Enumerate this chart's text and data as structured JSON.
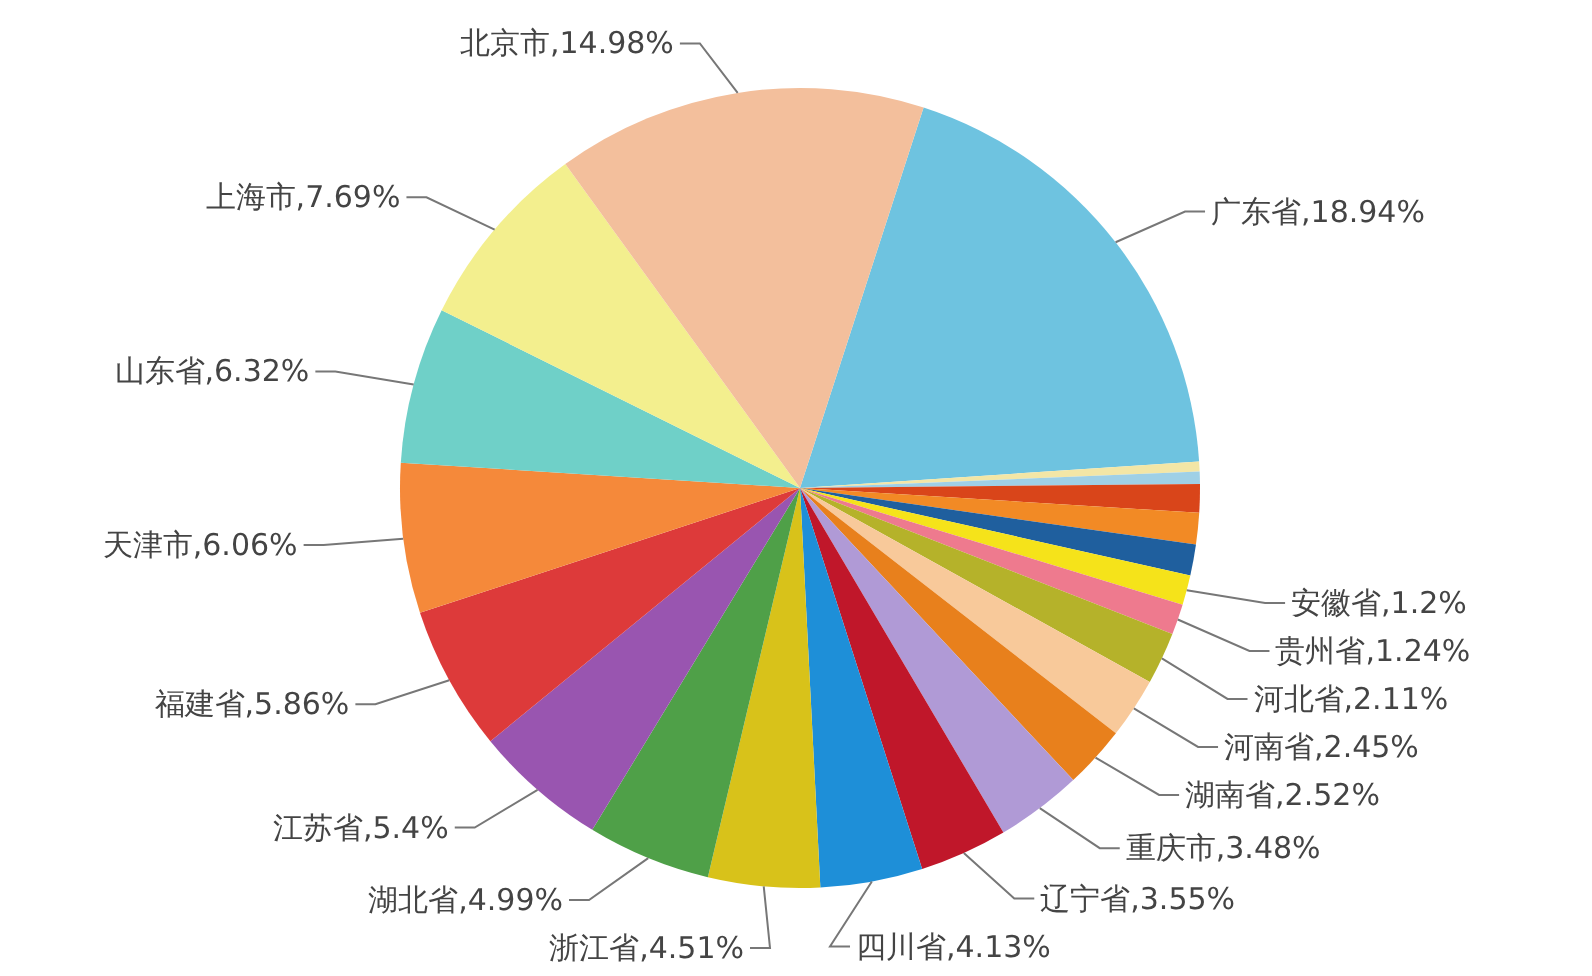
{
  "chart_data": {
    "type": "pie",
    "categories": [
      "广东省",
      null,
      null,
      null,
      null,
      null,
      "安徽省",
      "贵州省",
      "河北省",
      "河南省",
      "湖南省",
      "重庆市",
      "辽宁省",
      "四川省",
      "浙江省",
      "湖北省",
      "江苏省",
      "福建省",
      "天津市",
      "山东省",
      "上海市",
      "北京市"
    ],
    "values": [
      18.94,
      0.4,
      0.5,
      1.15,
      1.27,
      1.25,
      1.2,
      1.24,
      2.11,
      2.45,
      2.52,
      3.48,
      3.55,
      4.13,
      4.51,
      4.99,
      5.4,
      5.86,
      6.06,
      6.32,
      7.69,
      14.98
    ],
    "colors": [
      "#6ec3e0",
      "#f3e6a6",
      "#9fd0e6",
      "#d9451a",
      "#f28a25",
      "#1f5f9e",
      "#f5e31a",
      "#ee7a8e",
      "#b5b22a",
      "#f8c99a",
      "#e8801c",
      "#b09ad6",
      "#c0172a",
      "#1e8fd8",
      "#d8c21a",
      "#4fa048",
      "#9955b0",
      "#dd3a3a",
      "#f5893a",
      "#6fd0c8",
      "#f3ef8e",
      "#f3bf9c"
    ],
    "value_labels": [
      ",18.94%",
      null,
      null,
      null,
      null,
      null,
      ",1.2%",
      ",1.24%",
      ",2.11%",
      ",2.45%",
      ",2.52%",
      ",3.48%",
      ",3.55%",
      ",4.13%",
      ",4.51%",
      ",4.99%",
      ",5.4%",
      ",5.86%",
      ",6.06%",
      ",6.32%",
      ",7.69%",
      ",14.98%"
    ]
  }
}
